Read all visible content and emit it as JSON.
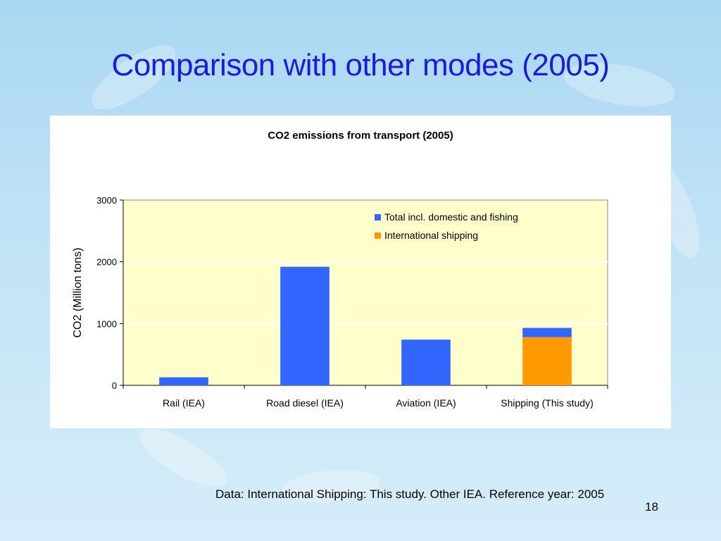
{
  "slide": {
    "title": "Comparison with other modes (2005)",
    "footer_note": "Data: International Shipping: This study. Other IEA. Reference year: 2005",
    "page_number": "18"
  },
  "colors": {
    "title": "#1a1ae0",
    "plot_background": "#ffffcc",
    "total_series": "#3366ff",
    "international_series": "#ff9900"
  },
  "chart_data": {
    "type": "bar",
    "stacked": true,
    "title": "CO2 emissions from transport (2005)",
    "xlabel": "",
    "ylabel": "CO2 (Million tons)",
    "ylim": [
      0,
      3000
    ],
    "yticks": [
      0,
      1000,
      2000,
      3000
    ],
    "grid": true,
    "legend_position": "top-right",
    "categories": [
      "Rail (IEA)",
      "Road diesel (IEA)",
      "Aviation (IEA)",
      "Shipping (This study)"
    ],
    "series": [
      {
        "name": "Total incl. domestic and fishing",
        "color": "#3366ff",
        "values": [
          130,
          1920,
          740,
          150
        ]
      },
      {
        "name": "International shipping",
        "color": "#ff9900",
        "values": [
          0,
          0,
          0,
          780
        ]
      }
    ]
  }
}
